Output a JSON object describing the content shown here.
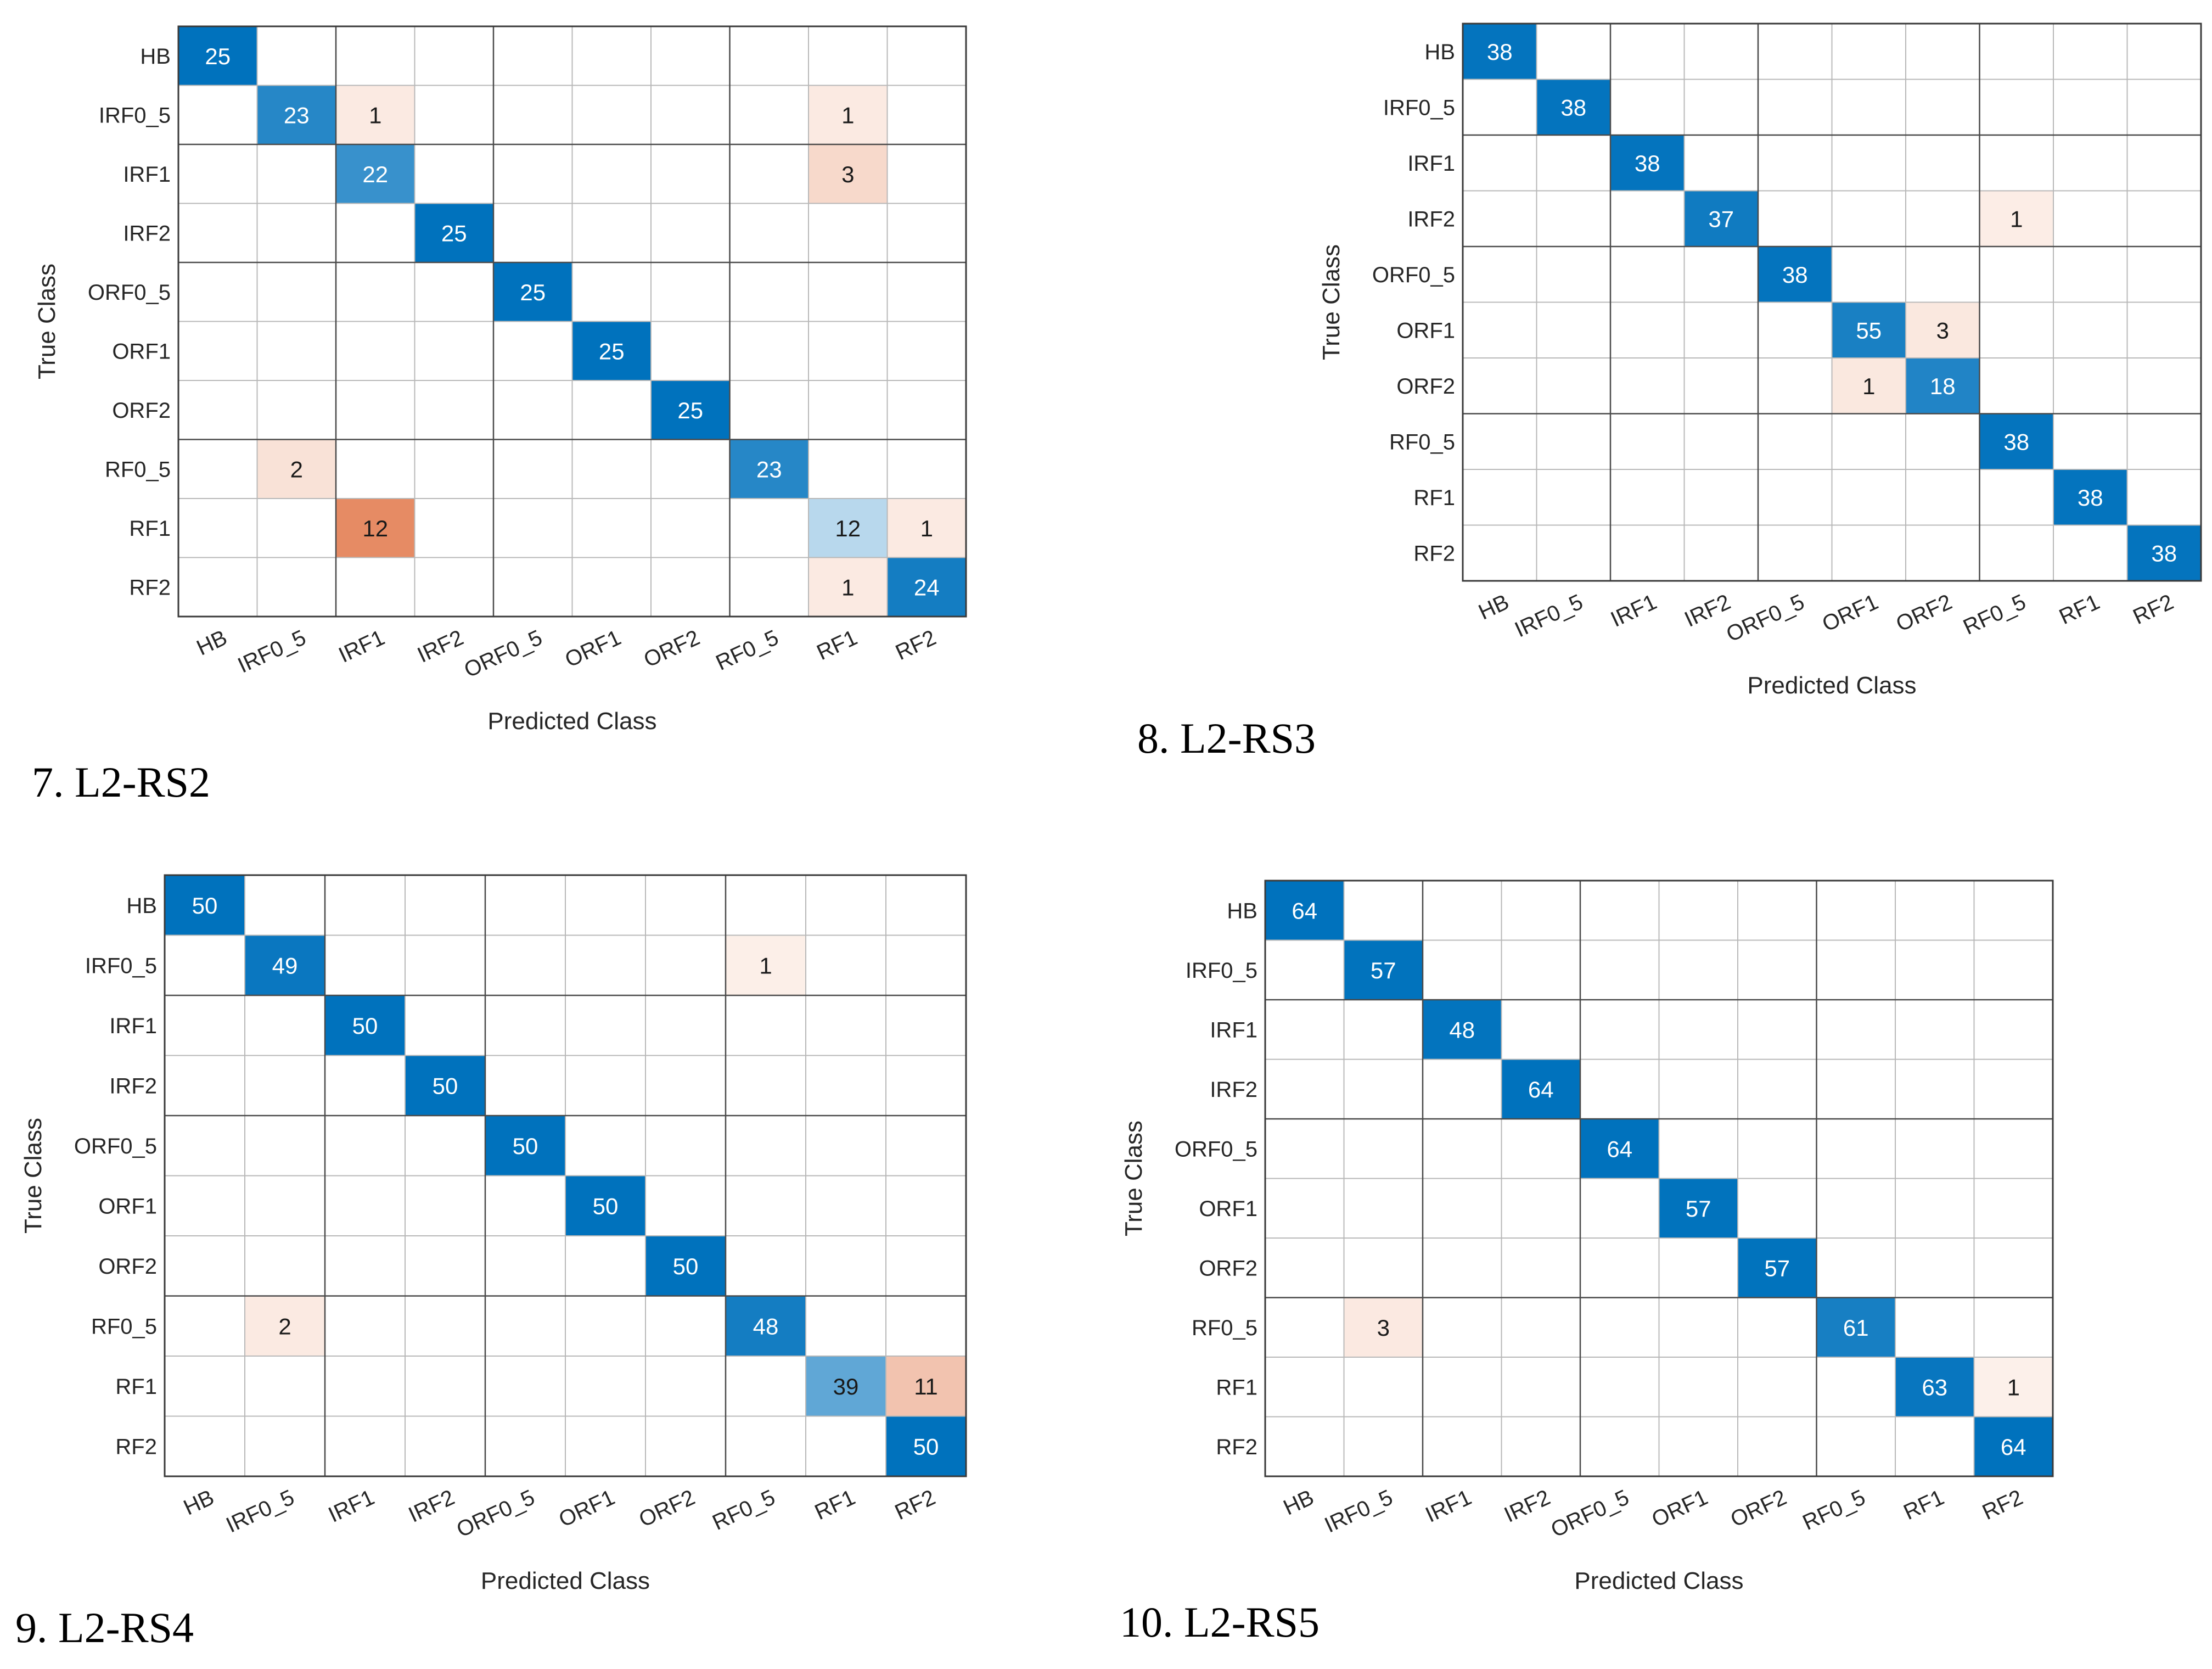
{
  "chart_data": [
    {
      "type": "heatmap",
      "caption": "7. L2-RS2",
      "classes": [
        "HB",
        "IRF0_5",
        "IRF1",
        "IRF2",
        "ORF0_5",
        "ORF1",
        "ORF2",
        "RF0_5",
        "RF1",
        "RF2"
      ],
      "xlabel": "Predicted Class",
      "ylabel": "True Class",
      "matrix": [
        [
          25,
          0,
          0,
          0,
          0,
          0,
          0,
          0,
          0,
          0
        ],
        [
          0,
          23,
          1,
          0,
          0,
          0,
          0,
          0,
          1,
          0
        ],
        [
          0,
          0,
          22,
          0,
          0,
          0,
          0,
          0,
          3,
          0
        ],
        [
          0,
          0,
          0,
          25,
          0,
          0,
          0,
          0,
          0,
          0
        ],
        [
          0,
          0,
          0,
          0,
          25,
          0,
          0,
          0,
          0,
          0
        ],
        [
          0,
          0,
          0,
          0,
          0,
          25,
          0,
          0,
          0,
          0
        ],
        [
          0,
          0,
          0,
          0,
          0,
          0,
          25,
          0,
          0,
          0
        ],
        [
          0,
          2,
          0,
          0,
          0,
          0,
          0,
          23,
          0,
          0
        ],
        [
          0,
          0,
          12,
          0,
          0,
          0,
          0,
          0,
          12,
          1
        ],
        [
          0,
          0,
          0,
          0,
          0,
          0,
          0,
          0,
          1,
          24
        ]
      ]
    },
    {
      "type": "heatmap",
      "caption": "8. L2-RS3",
      "classes": [
        "HB",
        "IRF0_5",
        "IRF1",
        "IRF2",
        "ORF0_5",
        "ORF1",
        "ORF2",
        "RF0_5",
        "RF1",
        "RF2"
      ],
      "xlabel": "Predicted Class",
      "ylabel": "True Class",
      "matrix": [
        [
          38,
          0,
          0,
          0,
          0,
          0,
          0,
          0,
          0,
          0
        ],
        [
          0,
          38,
          0,
          0,
          0,
          0,
          0,
          0,
          0,
          0
        ],
        [
          0,
          0,
          38,
          0,
          0,
          0,
          0,
          0,
          0,
          0
        ],
        [
          0,
          0,
          0,
          37,
          0,
          0,
          0,
          1,
          0,
          0
        ],
        [
          0,
          0,
          0,
          0,
          38,
          0,
          0,
          0,
          0,
          0
        ],
        [
          0,
          0,
          0,
          0,
          0,
          55,
          3,
          0,
          0,
          0
        ],
        [
          0,
          0,
          0,
          0,
          0,
          1,
          18,
          0,
          0,
          0
        ],
        [
          0,
          0,
          0,
          0,
          0,
          0,
          0,
          38,
          0,
          0
        ],
        [
          0,
          0,
          0,
          0,
          0,
          0,
          0,
          0,
          38,
          0
        ],
        [
          0,
          0,
          0,
          0,
          0,
          0,
          0,
          0,
          0,
          38
        ]
      ]
    },
    {
      "type": "heatmap",
      "caption": "9. L2-RS4",
      "classes": [
        "HB",
        "IRF0_5",
        "IRF1",
        "IRF2",
        "ORF0_5",
        "ORF1",
        "ORF2",
        "RF0_5",
        "RF1",
        "RF2"
      ],
      "xlabel": "Predicted Class",
      "ylabel": "True Class",
      "matrix": [
        [
          50,
          0,
          0,
          0,
          0,
          0,
          0,
          0,
          0,
          0
        ],
        [
          0,
          49,
          0,
          0,
          0,
          0,
          0,
          1,
          0,
          0
        ],
        [
          0,
          0,
          50,
          0,
          0,
          0,
          0,
          0,
          0,
          0
        ],
        [
          0,
          0,
          0,
          50,
          0,
          0,
          0,
          0,
          0,
          0
        ],
        [
          0,
          0,
          0,
          0,
          50,
          0,
          0,
          0,
          0,
          0
        ],
        [
          0,
          0,
          0,
          0,
          0,
          50,
          0,
          0,
          0,
          0
        ],
        [
          0,
          0,
          0,
          0,
          0,
          0,
          50,
          0,
          0,
          0
        ],
        [
          0,
          2,
          0,
          0,
          0,
          0,
          0,
          48,
          0,
          0
        ],
        [
          0,
          0,
          0,
          0,
          0,
          0,
          0,
          0,
          39,
          11
        ],
        [
          0,
          0,
          0,
          0,
          0,
          0,
          0,
          0,
          0,
          50
        ]
      ]
    },
    {
      "type": "heatmap",
      "caption": "10. L2-RS5",
      "classes": [
        "HB",
        "IRF0_5",
        "IRF1",
        "IRF2",
        "ORF0_5",
        "ORF1",
        "ORF2",
        "RF0_5",
        "RF1",
        "RF2"
      ],
      "xlabel": "Predicted Class",
      "ylabel": "True Class",
      "matrix": [
        [
          64,
          0,
          0,
          0,
          0,
          0,
          0,
          0,
          0,
          0
        ],
        [
          0,
          57,
          0,
          0,
          0,
          0,
          0,
          0,
          0,
          0
        ],
        [
          0,
          0,
          48,
          0,
          0,
          0,
          0,
          0,
          0,
          0
        ],
        [
          0,
          0,
          0,
          64,
          0,
          0,
          0,
          0,
          0,
          0
        ],
        [
          0,
          0,
          0,
          0,
          64,
          0,
          0,
          0,
          0,
          0
        ],
        [
          0,
          0,
          0,
          0,
          0,
          57,
          0,
          0,
          0,
          0
        ],
        [
          0,
          0,
          0,
          0,
          0,
          0,
          57,
          0,
          0,
          0
        ],
        [
          0,
          3,
          0,
          0,
          0,
          0,
          0,
          61,
          0,
          0
        ],
        [
          0,
          0,
          0,
          0,
          0,
          0,
          0,
          0,
          63,
          1
        ],
        [
          0,
          0,
          0,
          0,
          0,
          0,
          0,
          0,
          0,
          64
        ]
      ]
    }
  ],
  "colors": {
    "diag_strong": "#0072BD",
    "diag_weak": "#EAF3FA",
    "off_strong": "#D95319",
    "off_weak": "#FDF3EE",
    "grid": "#b8b8b8",
    "block_line": "#4a4a4a"
  }
}
